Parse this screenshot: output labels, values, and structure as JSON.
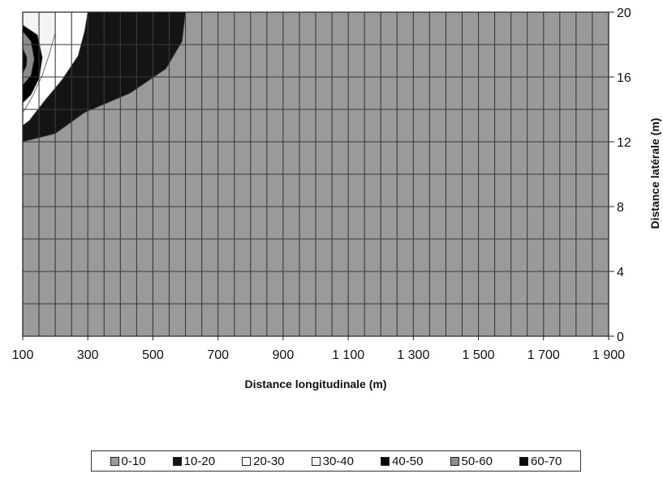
{
  "chart_data": {
    "type": "heatmap",
    "title": "",
    "xlabel": "Distance longitudinale (m)",
    "ylabel": "Distance latérale (m)",
    "xlim": [
      100,
      1900
    ],
    "ylim": [
      0,
      20
    ],
    "x_tick_values": [
      100,
      300,
      500,
      700,
      900,
      1100,
      1300,
      1500,
      1700,
      1900
    ],
    "x_tick_labels": [
      "100",
      "300",
      "500",
      "700",
      "900",
      "1 100",
      "1 300",
      "1 500",
      "1 700",
      "1 900"
    ],
    "y_tick_values": [
      0,
      4,
      8,
      12,
      16,
      20
    ],
    "y_tick_labels": [
      "0",
      "4",
      "8",
      "12",
      "16",
      "20"
    ],
    "grid": true,
    "legend_position": "bottom",
    "background_class": "0-10",
    "classes": [
      {
        "label": "0-10",
        "color": "#9a9a9a"
      },
      {
        "label": "10-20",
        "color": "#141414"
      },
      {
        "label": "20-30",
        "color": "#ffffff"
      },
      {
        "label": "30-40",
        "color": "#f4f4f4"
      },
      {
        "label": "40-50",
        "color": "#000000"
      },
      {
        "label": "50-60",
        "color": "#8c8c8c"
      },
      {
        "label": "60-70",
        "color": "#0a0a0a"
      }
    ],
    "contours": [
      {
        "class": "10-20",
        "points": [
          [
            100,
            20
          ],
          [
            600,
            20
          ],
          [
            590,
            18.2
          ],
          [
            540,
            16.5
          ],
          [
            430,
            15
          ],
          [
            290,
            13.8
          ],
          [
            200,
            12.5
          ],
          [
            100,
            12
          ]
        ]
      },
      {
        "class": "20-30",
        "points": [
          [
            100,
            20
          ],
          [
            300,
            20
          ],
          [
            290,
            18.8
          ],
          [
            270,
            17.3
          ],
          [
            220,
            15.8
          ],
          [
            170,
            14.6
          ],
          [
            120,
            13.3
          ],
          [
            100,
            13
          ]
        ]
      },
      {
        "class": "30-40",
        "points": [
          [
            100,
            20
          ],
          [
            200,
            20
          ],
          [
            200,
            18.7
          ],
          [
            180,
            17.3
          ],
          [
            160,
            16.1
          ],
          [
            130,
            14.8
          ],
          [
            110,
            14.1
          ],
          [
            100,
            13.8
          ]
        ]
      },
      {
        "class": "40-50",
        "points": [
          [
            100,
            19.2
          ],
          [
            145,
            18.6
          ],
          [
            160,
            17.2
          ],
          [
            150,
            15.9
          ],
          [
            125,
            14.9
          ],
          [
            100,
            14.4
          ]
        ]
      },
      {
        "class": "50-60",
        "points": [
          [
            100,
            18.8
          ],
          [
            125,
            18.2
          ],
          [
            135,
            17.1
          ],
          [
            125,
            16.1
          ],
          [
            100,
            15.5
          ]
        ]
      },
      {
        "class": "60-70",
        "points": [
          [
            100,
            17.8
          ],
          [
            113,
            17.2
          ],
          [
            112,
            16.7
          ],
          [
            100,
            16.2
          ]
        ]
      }
    ]
  },
  "legend": {
    "items": [
      {
        "label": "0-10",
        "color": "#9a9a9a"
      },
      {
        "label": "10-20",
        "color": "#141414"
      },
      {
        "label": "20-30",
        "color": "#ffffff"
      },
      {
        "label": "30-40",
        "color": "#f4f4f4"
      },
      {
        "label": "40-50",
        "color": "#000000"
      },
      {
        "label": "50-60",
        "color": "#8c8c8c"
      },
      {
        "label": "60-70",
        "color": "#0a0a0a"
      }
    ]
  }
}
